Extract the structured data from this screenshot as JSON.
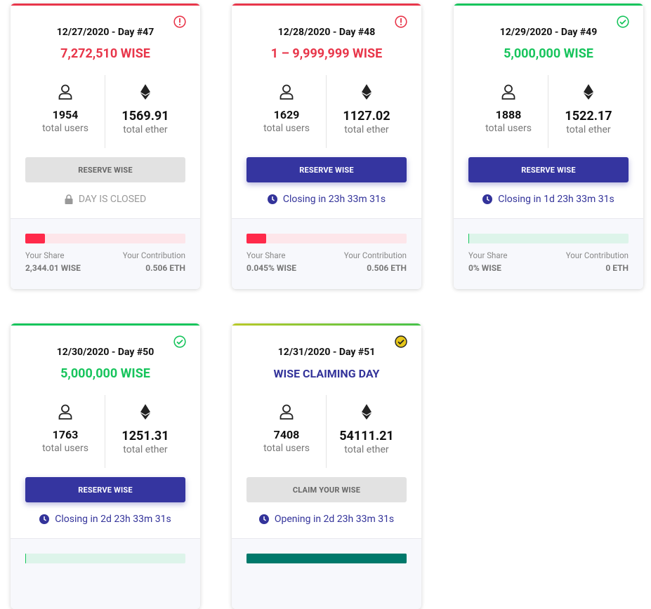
{
  "cards": [
    {
      "date": "12/27/2020 - Day #47",
      "amount": "7,272,510 WISE",
      "users": 1954,
      "users_label": "total users",
      "ether": 1569.91,
      "ether_label": "total ether",
      "button": "RESERVE WISE",
      "button_enabled": false,
      "status": "DAY IS CLOSED",
      "status_icon": "lock",
      "share_label": "Your Share",
      "share": "2,344.01 WISE",
      "contribution_label": "Your Contribution",
      "contribution": "0.506 ETH",
      "badge": "alert",
      "accent": "#e8364a"
    },
    {
      "date": "12/28/2020 - Day #48",
      "amount": "1 – 9,999,999 WISE",
      "users": 1629,
      "users_label": "total users",
      "ether": 1127.02,
      "ether_label": "total ether",
      "button": "RESERVE WISE",
      "button_enabled": true,
      "status": "Closing in 23h 33m 31s",
      "status_icon": "clock",
      "share_label": "Your Share",
      "share": "0.045% WISE",
      "contribution_label": "Your Contribution",
      "contribution": "0.506 ETH",
      "badge": "alert",
      "accent": "#e8364a"
    },
    {
      "date": "12/29/2020 - Day #49",
      "amount": "5,000,000 WISE",
      "users": 1888,
      "users_label": "total users",
      "ether": 1522.17,
      "ether_label": "total ether",
      "button": "RESERVE WISE",
      "button_enabled": true,
      "status": "Closing in 1d 23h 33m 31s",
      "status_icon": "clock",
      "share_label": "Your Share",
      "share": "0% WISE",
      "contribution_label": "Your Contribution",
      "contribution": "0 ETH",
      "badge": "check",
      "accent": "#17c45c"
    },
    {
      "date": "12/30/2020 - Day #50",
      "amount": "5,000,000 WISE",
      "users": 1763,
      "users_label": "total users",
      "ether": 1251.31,
      "ether_label": "total ether",
      "button": "RESERVE WISE",
      "button_enabled": true,
      "status": "Closing in 2d 23h 33m 31s",
      "status_icon": "clock",
      "badge": "check",
      "accent": "#17c45c"
    },
    {
      "date": "12/31/2020 - Day #51",
      "amount": "WISE CLAIMING DAY",
      "users": 7408,
      "users_label": "total users",
      "ether": 54111.21,
      "ether_label": "total ether",
      "button": "CLAIM YOUR WISE",
      "button_enabled": false,
      "status": "Opening in 2d 23h 33m 31s",
      "status_icon": "clock",
      "badge": "claim",
      "accent": "#33339a"
    }
  ]
}
